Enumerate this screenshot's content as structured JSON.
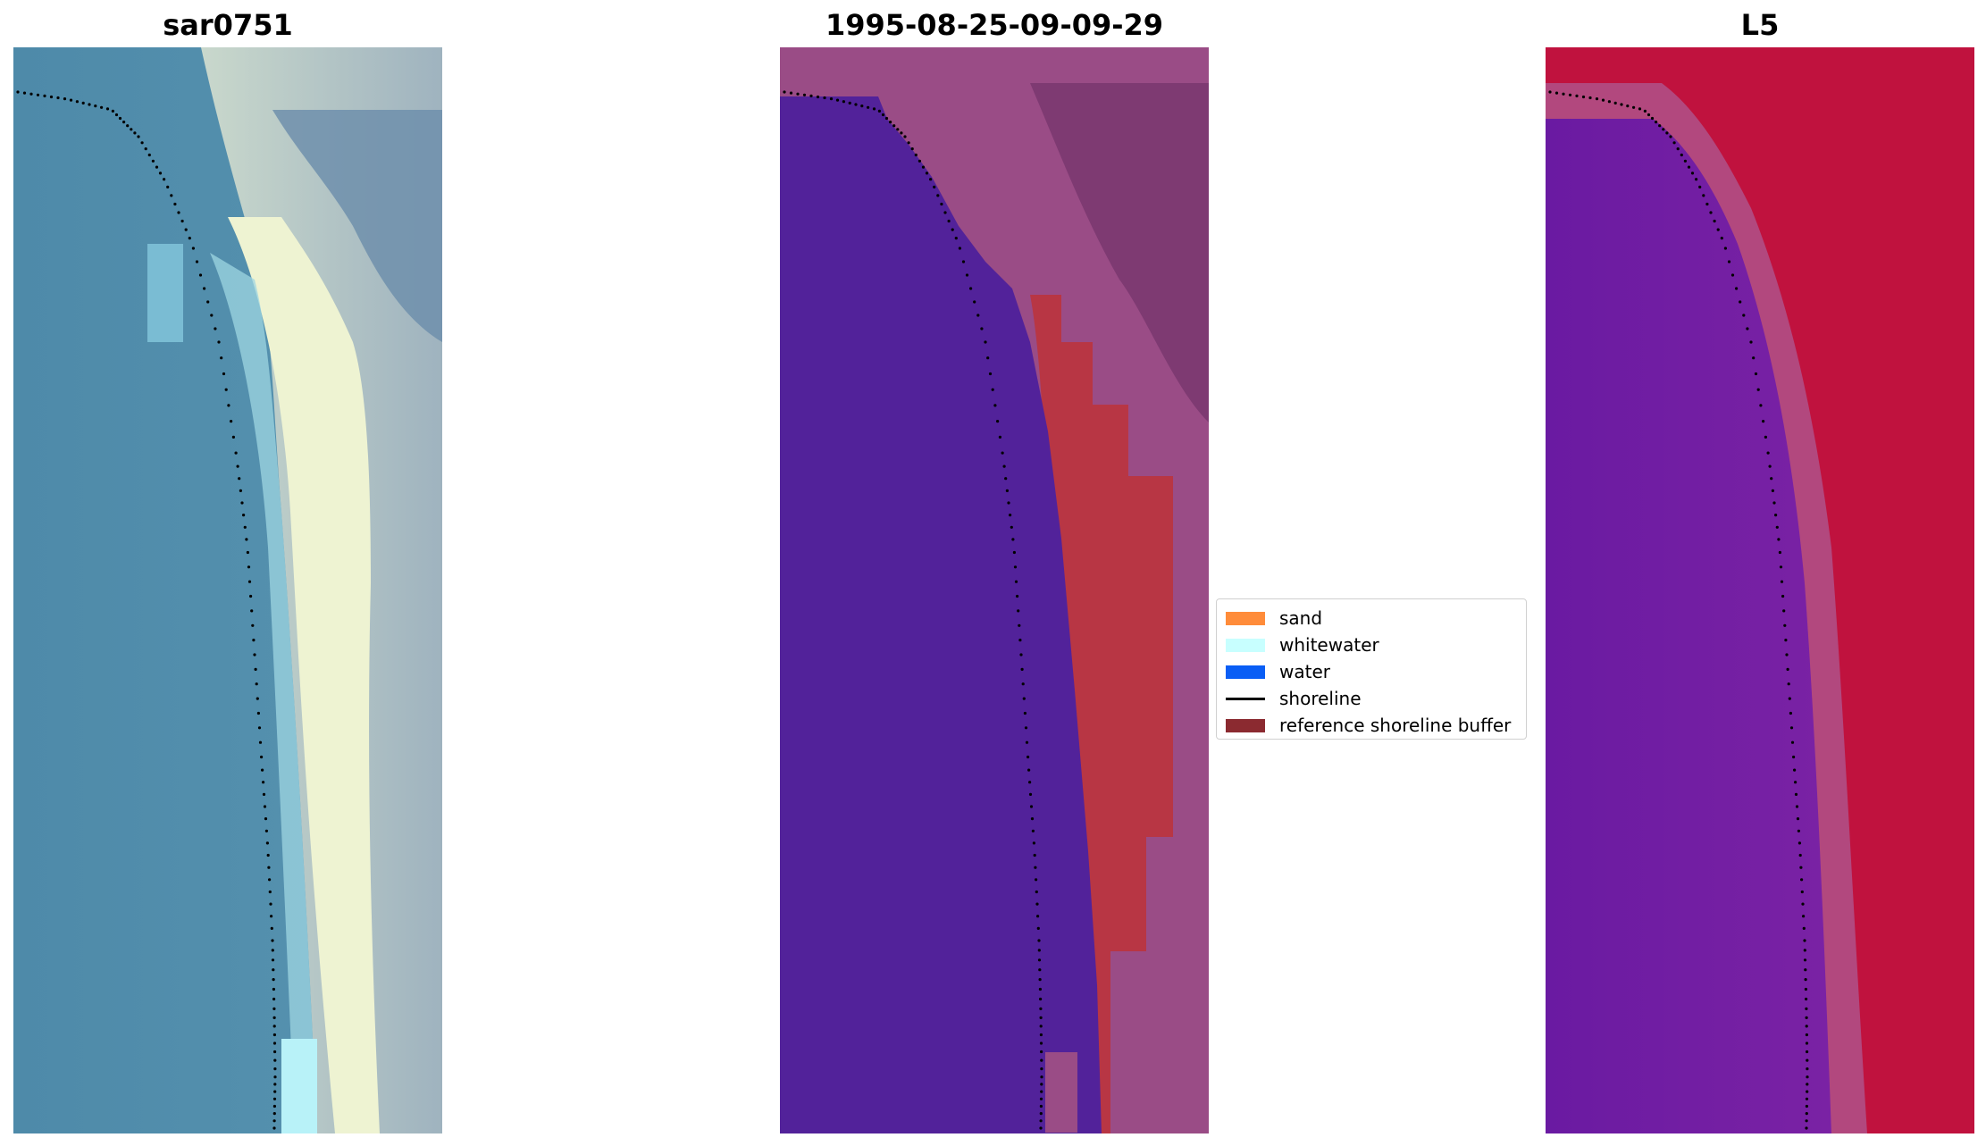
{
  "panels": [
    {
      "title": "sar0751"
    },
    {
      "title": "1995-08-25-09-09-29"
    },
    {
      "title": "L5"
    }
  ],
  "legend": {
    "items": [
      {
        "label": "sand",
        "color": "#ff8c3a",
        "kind": "patch"
      },
      {
        "label": "whitewater",
        "color": "#c8ffff",
        "kind": "patch"
      },
      {
        "label": "water",
        "color": "#0a5ef5",
        "kind": "patch"
      },
      {
        "label": "shoreline",
        "color": "#000000",
        "kind": "line"
      },
      {
        "label": "reference shoreline buffer",
        "color": "#8b2a30",
        "kind": "patch"
      }
    ]
  },
  "colors": {
    "water_rgb": "#4b8aaa",
    "land_rgb": "#5f84a0",
    "sand_rgb": "#f2f6d4",
    "class_water": "#52229a",
    "class_buffer": "#b83644",
    "class_land": "#9a4c86",
    "index_water": "#6a14a0",
    "index_land": "#c2103e"
  }
}
